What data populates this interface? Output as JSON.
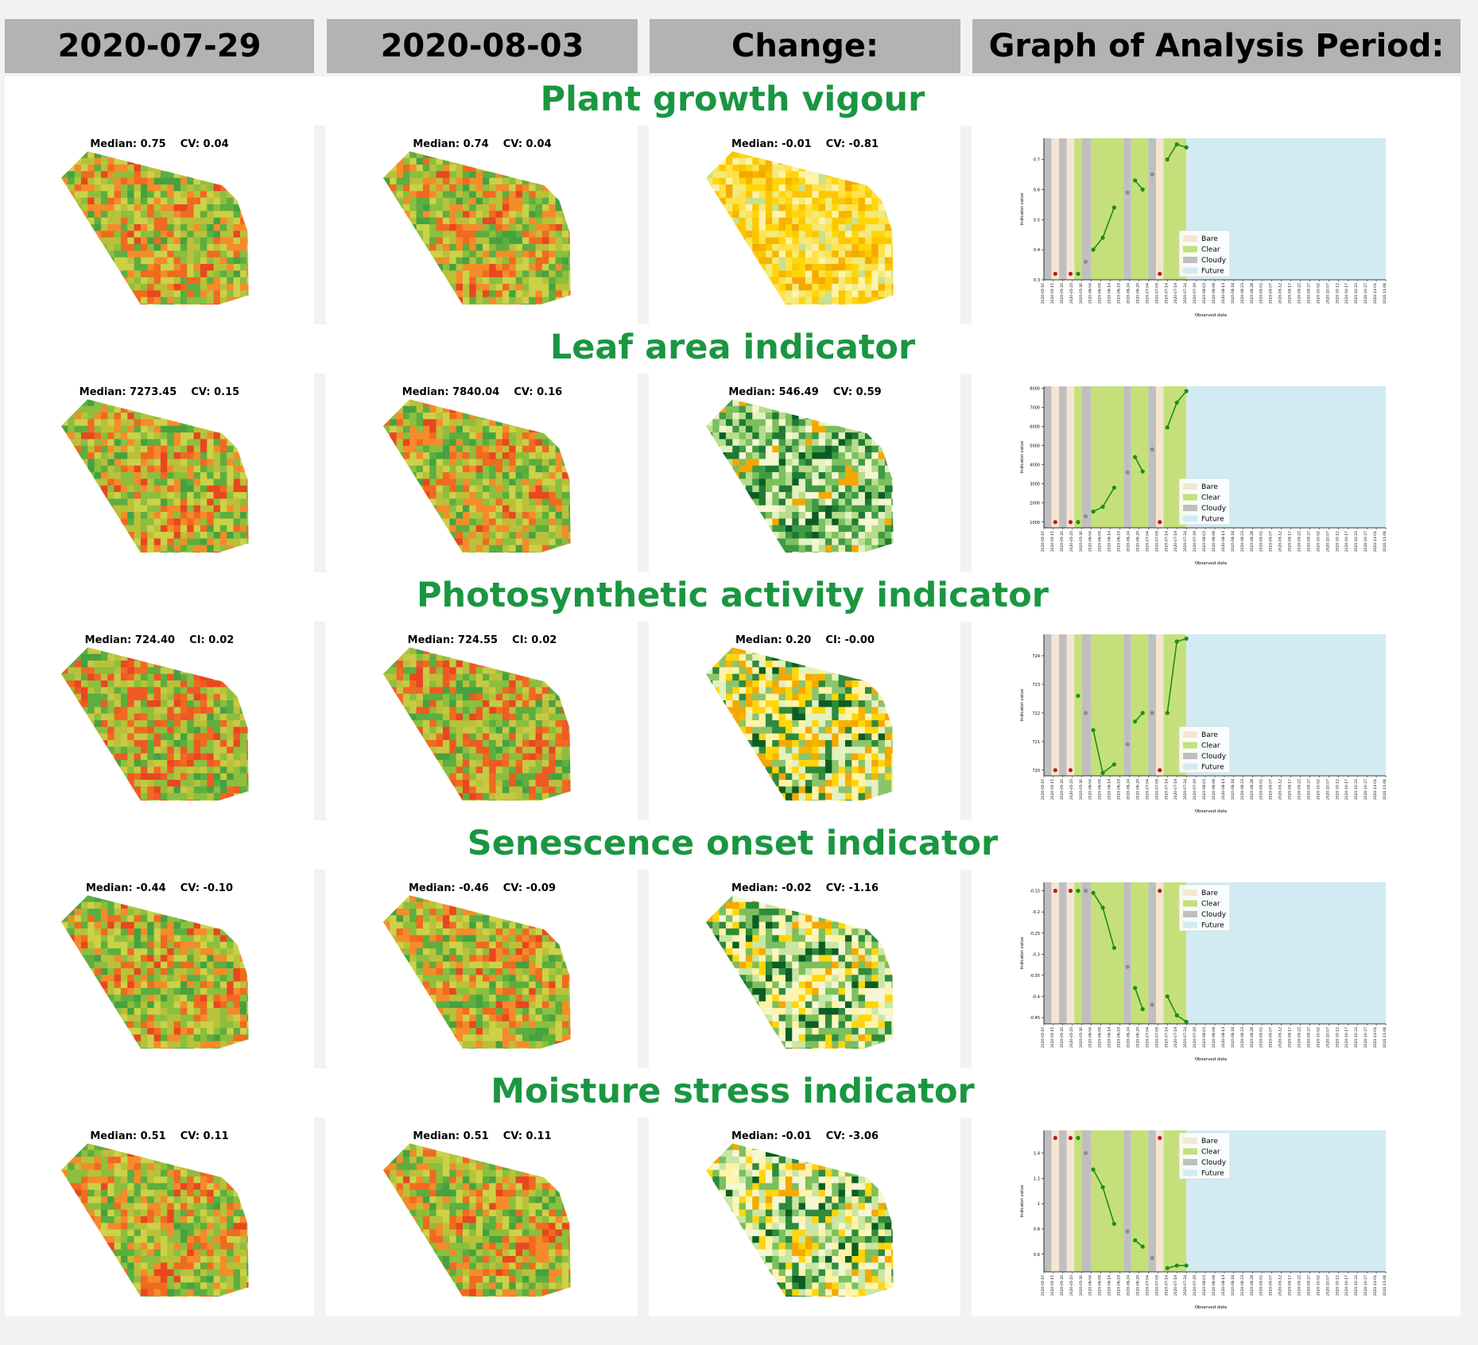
{
  "header": {
    "col1": "2020-07-29",
    "col2": "2020-08-03",
    "col3": "Change:",
    "col4": "Graph of Analysis Period:"
  },
  "colors": {
    "title_green": "#1a9641",
    "header_gray": "#b3b3b3",
    "bare": "#f5e6d3",
    "clear": "#c5e07a",
    "cloudy": "#bfbfbf",
    "future": "#d2ebf2",
    "line": "#1e8c1e",
    "red_point": "#b71c1c",
    "gray_point": "#8c8c8c"
  },
  "graph_common": {
    "ylabel": "Indicator value",
    "xlabel": "Observed date",
    "legend": [
      "Bare",
      "Clear",
      "Cloudy",
      "Future"
    ],
    "x_ticks": [
      "2020-05-10",
      "2020-05-15",
      "2020-05-20",
      "2020-05-25",
      "2020-05-30",
      "2020-06-04",
      "2020-06-09",
      "2020-06-14",
      "2020-06-19",
      "2020-06-24",
      "2020-06-29",
      "2020-07-04",
      "2020-07-09",
      "2020-07-14",
      "2020-07-19",
      "2020-07-24",
      "2020-07-29",
      "2020-08-03",
      "2020-08-08",
      "2020-08-13",
      "2020-08-18",
      "2020-08-23",
      "2020-08-28",
      "2020-09-02",
      "2020-09-07",
      "2020-09-12",
      "2020-09-17",
      "2020-09-22",
      "2020-09-27",
      "2020-10-02",
      "2020-10-07",
      "2020-10-12",
      "2020-10-17",
      "2020-10-22",
      "2020-10-27",
      "2020-11-01",
      "2020-11-06"
    ],
    "bands": [
      {
        "kind": "cloudy",
        "from": "2020-05-10",
        "to": "2020-05-14"
      },
      {
        "kind": "bare",
        "from": "2020-05-14",
        "to": "2020-05-18"
      },
      {
        "kind": "cloudy",
        "from": "2020-05-18",
        "to": "2020-05-22"
      },
      {
        "kind": "bare",
        "from": "2020-05-22",
        "to": "2020-05-26"
      },
      {
        "kind": "clear",
        "from": "2020-05-26",
        "to": "2020-05-30"
      },
      {
        "kind": "cloudy",
        "from": "2020-05-30",
        "to": "2020-06-04"
      },
      {
        "kind": "clear",
        "from": "2020-06-04",
        "to": "2020-06-21"
      },
      {
        "kind": "cloudy",
        "from": "2020-06-21",
        "to": "2020-06-25"
      },
      {
        "kind": "clear",
        "from": "2020-06-25",
        "to": "2020-07-04"
      },
      {
        "kind": "cloudy",
        "from": "2020-07-04",
        "to": "2020-07-08"
      },
      {
        "kind": "bare",
        "from": "2020-07-08",
        "to": "2020-07-12"
      },
      {
        "kind": "clear",
        "from": "2020-07-12",
        "to": "2020-07-24"
      },
      {
        "kind": "future",
        "from": "2020-07-24",
        "to": "2020-11-06"
      }
    ]
  },
  "chart_data": [
    {
      "type": "line",
      "title": "Plant growth vigour",
      "stats": {
        "d1": "Median: 0.75    CV: 0.04",
        "d2": "Median: 0.74    CV: 0.04",
        "change": "Median: -0.01    CV: -0.81"
      },
      "palette": "vigour",
      "change_palette": "yellow",
      "yticks": [
        0.3,
        0.4,
        0.5,
        0.6,
        0.7
      ],
      "ylim": [
        0.3,
        0.77
      ],
      "legend_position": "lower-right",
      "red_points": [
        [
          "2020-05-16",
          0.32
        ],
        [
          "2020-05-24",
          0.32
        ],
        [
          "2020-07-10",
          0.32
        ]
      ],
      "gray_points": [
        [
          "2020-06-01",
          0.36
        ],
        [
          "2020-06-23",
          0.59
        ],
        [
          "2020-07-06",
          0.65
        ]
      ],
      "green_segments": [
        [
          [
            "2020-05-28",
            0.32
          ]
        ],
        [
          [
            "2020-06-05",
            0.4
          ],
          [
            "2020-06-10",
            0.44
          ],
          [
            "2020-06-16",
            0.54
          ]
        ],
        [
          [
            "2020-06-27",
            0.63
          ],
          [
            "2020-07-01",
            0.6
          ]
        ],
        [
          [
            "2020-07-14",
            0.7
          ],
          [
            "2020-07-19",
            0.75
          ],
          [
            "2020-07-24",
            0.74
          ]
        ]
      ]
    },
    {
      "type": "line",
      "title": "Leaf area indicator",
      "stats": {
        "d1": "Median: 7273.45    CV: 0.15",
        "d2": "Median: 7840.04    CV: 0.16",
        "change": "Median: 546.49    CV: 0.59"
      },
      "palette": "vigour",
      "change_palette": "green",
      "yticks": [
        1000,
        2000,
        3000,
        4000,
        5000,
        6000,
        7000,
        8000
      ],
      "ylim": [
        700,
        8100
      ],
      "legend_position": "lower-right",
      "red_points": [
        [
          "2020-05-16",
          1000
        ],
        [
          "2020-05-24",
          1000
        ],
        [
          "2020-07-10",
          1000
        ]
      ],
      "gray_points": [
        [
          "2020-06-01",
          1300
        ],
        [
          "2020-06-23",
          3600
        ],
        [
          "2020-07-06",
          4800
        ]
      ],
      "green_segments": [
        [
          [
            "2020-05-28",
            1000
          ]
        ],
        [
          [
            "2020-06-05",
            1550
          ],
          [
            "2020-06-10",
            1800
          ],
          [
            "2020-06-16",
            2800
          ]
        ],
        [
          [
            "2020-06-27",
            4400
          ],
          [
            "2020-07-01",
            3650
          ]
        ],
        [
          [
            "2020-07-14",
            5950
          ],
          [
            "2020-07-19",
            7250
          ],
          [
            "2020-07-24",
            7850
          ]
        ]
      ]
    },
    {
      "type": "line",
      "title": "Photosynthetic activity indicator",
      "stats": {
        "d1": "Median: 724.40    CI: 0.02",
        "d2": "Median: 724.55    CI: 0.02",
        "change": "Median: 0.20    CI: -0.00"
      },
      "palette": "vigour_red",
      "change_palette": "mixed",
      "yticks": [
        720,
        721,
        722,
        723,
        724
      ],
      "ylim": [
        719.8,
        724.75
      ],
      "legend_position": "lower-right",
      "red_points": [
        [
          "2020-05-16",
          720
        ],
        [
          "2020-05-24",
          720
        ],
        [
          "2020-07-10",
          720
        ]
      ],
      "gray_points": [
        [
          "2020-06-01",
          722
        ],
        [
          "2020-06-23",
          720.9
        ],
        [
          "2020-07-06",
          722
        ]
      ],
      "green_segments": [
        [
          [
            "2020-05-28",
            722.6
          ]
        ],
        [
          [
            "2020-06-05",
            721.4
          ],
          [
            "2020-06-10",
            719.9
          ],
          [
            "2020-06-16",
            720.2
          ]
        ],
        [
          [
            "2020-06-27",
            721.7
          ],
          [
            "2020-07-01",
            722
          ]
        ],
        [
          [
            "2020-07-14",
            722
          ],
          [
            "2020-07-19",
            724.5
          ],
          [
            "2020-07-24",
            724.6
          ]
        ]
      ]
    },
    {
      "type": "line",
      "title": "Senescence onset indicator",
      "stats": {
        "d1": "Median: -0.44    CV: -0.10",
        "d2": "Median: -0.46    CV: -0.09",
        "change": "Median: -0.02    CV: -1.16"
      },
      "palette": "vigour",
      "change_palette": "mixed_green",
      "yticks": [
        -0.45,
        -0.4,
        -0.35,
        -0.3,
        -0.25,
        -0.2,
        -0.15
      ],
      "ylim": [
        -0.465,
        -0.13
      ],
      "legend_position": "upper-right",
      "red_points": [
        [
          "2020-05-16",
          -0.15
        ],
        [
          "2020-05-24",
          -0.15
        ],
        [
          "2020-07-10",
          -0.15
        ]
      ],
      "gray_points": [
        [
          "2020-06-01",
          -0.15
        ],
        [
          "2020-06-23",
          -0.33
        ],
        [
          "2020-07-06",
          -0.42
        ]
      ],
      "green_segments": [
        [
          [
            "2020-05-28",
            -0.15
          ]
        ],
        [
          [
            "2020-06-05",
            -0.155
          ],
          [
            "2020-06-10",
            -0.19
          ],
          [
            "2020-06-16",
            -0.285
          ]
        ],
        [
          [
            "2020-06-27",
            -0.38
          ],
          [
            "2020-07-01",
            -0.43
          ]
        ],
        [
          [
            "2020-07-14",
            -0.4
          ],
          [
            "2020-07-19",
            -0.445
          ],
          [
            "2020-07-24",
            -0.46
          ]
        ]
      ]
    },
    {
      "type": "line",
      "title": "Moisture stress indicator",
      "stats": {
        "d1": "Median: 0.51    CV: 0.11",
        "d2": "Median: 0.51    CV: 0.11",
        "change": "Median: -0.01    CV: -3.06"
      },
      "palette": "vigour",
      "change_palette": "mixed_green",
      "yticks": [
        0.6,
        0.8,
        1.0,
        1.2,
        1.4
      ],
      "ylim": [
        0.46,
        1.58
      ],
      "legend_position": "upper-right",
      "red_points": [
        [
          "2020-05-16",
          1.52
        ],
        [
          "2020-05-24",
          1.52
        ],
        [
          "2020-07-10",
          1.52
        ]
      ],
      "gray_points": [
        [
          "2020-06-01",
          1.4
        ],
        [
          "2020-06-23",
          0.78
        ],
        [
          "2020-07-06",
          0.57
        ]
      ],
      "green_segments": [
        [
          [
            "2020-05-28",
            1.52
          ]
        ],
        [
          [
            "2020-06-05",
            1.27
          ],
          [
            "2020-06-10",
            1.13
          ],
          [
            "2020-06-16",
            0.84
          ]
        ],
        [
          [
            "2020-06-27",
            0.71
          ],
          [
            "2020-07-01",
            0.66
          ]
        ],
        [
          [
            "2020-07-14",
            0.49
          ],
          [
            "2020-07-19",
            0.51
          ],
          [
            "2020-07-24",
            0.51
          ]
        ]
      ]
    }
  ]
}
